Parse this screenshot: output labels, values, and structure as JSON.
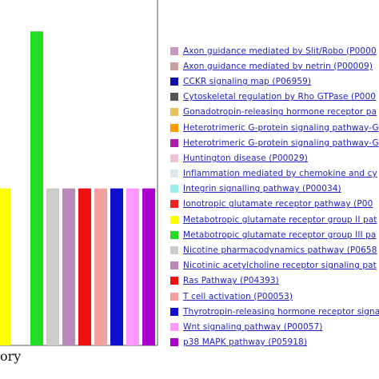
{
  "chart_data": {
    "type": "bar",
    "xlabel": "ory",
    "categories": [
      "Gonadotropin-releasing hormone receptor pa",
      "Metabotropic glutamate receptor group III pa",
      "Nicotine pharmacodynamics pathway (P0658",
      "Nicotinic acetylcholine receptor signaling pat",
      "Ras Pathway (P04393)",
      "T cell activation (P00053)",
      "Thyrotropin-releasing hormone receptor signa",
      "Wnt signaling pathway (P00057)",
      "p38 MAPK pathway (P05918)"
    ],
    "values": [
      1,
      2,
      1,
      1,
      1,
      1,
      1,
      1,
      1
    ],
    "bar_colors": [
      "#ffff00",
      "#22dd22",
      "#cccccc",
      "#bb88bb",
      "#ee1111",
      "#f2a0a0",
      "#1010cc",
      "#ff99ff",
      "#aa00cc"
    ],
    "ylim": [
      0,
      2.2
    ],
    "legend": [
      {
        "label": "Axon guidance mediated by Slit/Robo (P0000",
        "color": "#c49ac4"
      },
      {
        "label": "Axon guidance mediated by netrin (P00009)",
        "color": "#c8a0a0"
      },
      {
        "label": "CCKR signaling map (P06959)",
        "color": "#1010aa"
      },
      {
        "label": "Cytoskeletal regulation by Rho GTPase (P000",
        "color": "#555555"
      },
      {
        "label": "Gonadotropin-releasing hormone receptor pa",
        "color": "#e8c060"
      },
      {
        "label": "Heterotrimeric G-protein signaling pathway-G",
        "color": "#ff9900"
      },
      {
        "label": "Heterotrimeric G-protein signaling pathway-G",
        "color": "#aa22aa"
      },
      {
        "label": "Huntington disease (P00029)",
        "color": "#f2c0d8"
      },
      {
        "label": "Inflammation mediated by chemokine and cy",
        "color": "#dde8ee"
      },
      {
        "label": "Integrin signalling pathway (P00034)",
        "color": "#99eeee"
      },
      {
        "label": "Ionotropic glutamate receptor pathway (P00",
        "color": "#ee2222"
      },
      {
        "label": "Metabotropic glutamate receptor group II pat",
        "color": "#ffff00"
      },
      {
        "label": "Metabotropic glutamate receptor group III pa",
        "color": "#22dd22"
      },
      {
        "label": "Nicotine pharmacodynamics pathway (P0658",
        "color": "#cccccc"
      },
      {
        "label": "Nicotinic acetylcholine receptor signaling pat",
        "color": "#bb88bb"
      },
      {
        "label": "Ras Pathway (P04393)",
        "color": "#ee1111"
      },
      {
        "label": "T cell activation (P00053)",
        "color": "#f2a0a0"
      },
      {
        "label": "Thyrotropin-releasing hormone receptor signa",
        "color": "#1010cc"
      },
      {
        "label": "Wnt signaling pathway (P00057)",
        "color": "#ff99ff"
      },
      {
        "label": "p38 MAPK pathway (P05918)",
        "color": "#aa00cc"
      }
    ]
  }
}
